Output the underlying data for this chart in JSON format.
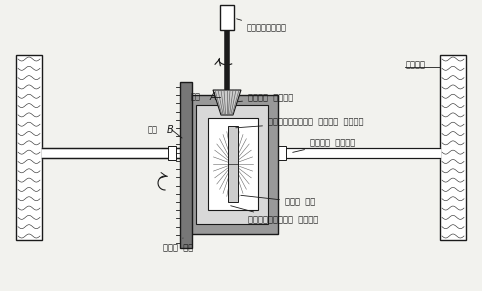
{
  "bg_color": "#f2f2ee",
  "line_color": "#1a1a1a",
  "labels": {
    "propeller_shaft": "プロペラシャフト",
    "drive_pinion": "ドライブ  ビニオン",
    "diff_pinion_shaft": "ディファレンシャル  ビニオン  シャフト",
    "axle_shaft": "アクスル  シャフト",
    "side_gear": "サイド  ギヤ",
    "diff_pinion": "ディファレンシャル  ビニオン",
    "ring_gear": "リング  ギヤ",
    "wheel": "ホイール",
    "gear_a": "歯車",
    "gear_a2": "A",
    "gear_b": "歯車",
    "gear_b2": "B"
  },
  "figsize": [
    4.82,
    2.91
  ],
  "dpi": 100
}
